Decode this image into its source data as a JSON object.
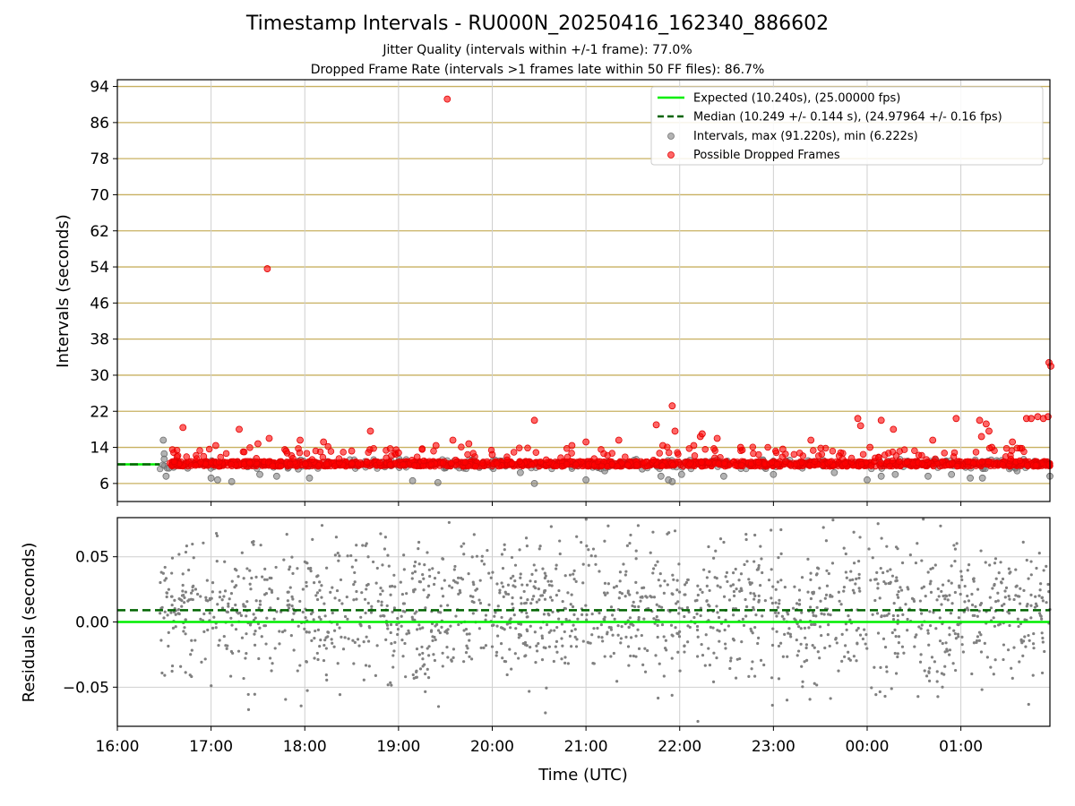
{
  "title": "Timestamp Intervals - RU000N_20250416_162340_886602",
  "subtitle_1": "Jitter Quality (intervals within +/-1 frame): 77.0%",
  "subtitle_2": "Dropped Frame Rate (intervals >1 frames late within 50 FF files): 86.7%",
  "colors": {
    "expected": "#00ee00",
    "median": "#006400",
    "interval_points": "#808080",
    "dropped_points": "#ff0000",
    "hgrid": "#c8b060",
    "vgrid": "#cfcfcf"
  },
  "chart_data": [
    {
      "type": "scatter",
      "xlabel": "",
      "ylabel": "Intervals (seconds)",
      "x_unit": "hours UTC (24+ = after midnight)",
      "xlim": [
        16.0,
        25.95
      ],
      "ylim": [
        2.0,
        95.5
      ],
      "yticks": [
        6,
        14,
        22,
        30,
        38,
        46,
        54,
        62,
        70,
        78,
        86,
        94
      ],
      "grid": true,
      "legend_placement": "top-right",
      "legend": [
        "Expected (10.240s), (25.00000 fps)",
        "Median (10.249 +/- 0.144 s), (24.97964 +/- 0.16 fps)",
        "Intervals, max (91.220s), min (6.222s)",
        "Possible Dropped Frames"
      ],
      "expected_line": {
        "y": 10.24
      },
      "median_line": {
        "y": 10.249
      },
      "data_start_x": 16.45,
      "dense_band": {
        "series": "Possible Dropped Frames",
        "x_range": [
          16.45,
          25.95
        ],
        "y_range": [
          9.8,
          10.9
        ]
      },
      "series": [
        {
          "name": "Intervals, max (91.220s), min (6.222s)",
          "points": [
            [
              16.49,
              15.6
            ],
            [
              16.5,
              12.6
            ],
            [
              16.5,
              11.4
            ],
            [
              16.52,
              7.6
            ],
            [
              16.55,
              9.4
            ],
            [
              16.6,
              9.6
            ],
            [
              16.75,
              9.4
            ],
            [
              17.0,
              7.2
            ],
            [
              17.07,
              6.8
            ],
            [
              17.22,
              6.4
            ],
            [
              17.52,
              8.0
            ],
            [
              17.7,
              7.6
            ],
            [
              17.93,
              9.2
            ],
            [
              18.05,
              7.2
            ],
            [
              19.15,
              6.6
            ],
            [
              19.42,
              6.2
            ],
            [
              20.3,
              8.4
            ],
            [
              20.45,
              6.0
            ],
            [
              21.0,
              6.8
            ],
            [
              21.2,
              8.8
            ],
            [
              21.6,
              9.2
            ],
            [
              21.8,
              7.6
            ],
            [
              21.88,
              6.8
            ],
            [
              21.92,
              6.4
            ],
            [
              22.02,
              8.0
            ],
            [
              22.47,
              7.6
            ],
            [
              23.0,
              8.0
            ],
            [
              23.65,
              8.4
            ],
            [
              24.0,
              6.8
            ],
            [
              24.15,
              7.6
            ],
            [
              24.3,
              8.0
            ],
            [
              24.65,
              7.6
            ],
            [
              24.9,
              8.0
            ],
            [
              25.1,
              7.2
            ],
            [
              25.23,
              7.2
            ],
            [
              25.6,
              8.8
            ],
            [
              25.95,
              7.6
            ]
          ]
        },
        {
          "name": "Possible Dropped Frames",
          "points": [
            [
              16.7,
              18.4
            ],
            [
              16.92,
              12.0
            ],
            [
              17.05,
              14.4
            ],
            [
              17.3,
              18.0
            ],
            [
              17.5,
              14.8
            ],
            [
              17.6,
              53.6
            ],
            [
              17.62,
              16.0
            ],
            [
              17.8,
              13.2
            ],
            [
              17.95,
              15.6
            ],
            [
              18.2,
              15.2
            ],
            [
              18.5,
              13.2
            ],
            [
              18.7,
              17.6
            ],
            [
              19.0,
              12.8
            ],
            [
              19.4,
              14.4
            ],
            [
              19.52,
              91.2
            ],
            [
              19.58,
              15.6
            ],
            [
              19.75,
              14.8
            ],
            [
              20.0,
              12.4
            ],
            [
              20.45,
              20.0
            ],
            [
              20.85,
              14.4
            ],
            [
              21.0,
              15.2
            ],
            [
              21.35,
              15.6
            ],
            [
              21.75,
              19.0
            ],
            [
              21.82,
              14.4
            ],
            [
              21.92,
              23.2
            ],
            [
              21.95,
              17.6
            ],
            [
              22.15,
              14.4
            ],
            [
              22.22,
              16.4
            ],
            [
              22.24,
              17.0
            ],
            [
              22.4,
              16.0
            ],
            [
              22.65,
              14.0
            ],
            [
              23.1,
              13.6
            ],
            [
              23.4,
              15.6
            ],
            [
              23.9,
              20.4
            ],
            [
              23.93,
              18.8
            ],
            [
              24.03,
              14.0
            ],
            [
              24.15,
              20.0
            ],
            [
              24.28,
              18.0
            ],
            [
              24.7,
              15.6
            ],
            [
              24.95,
              20.4
            ],
            [
              25.2,
              20.0
            ],
            [
              25.22,
              16.4
            ],
            [
              25.27,
              19.2
            ],
            [
              25.3,
              17.6
            ],
            [
              25.33,
              14.0
            ],
            [
              25.55,
              15.2
            ],
            [
              25.7,
              20.4
            ],
            [
              25.75,
              20.4
            ],
            [
              25.82,
              20.8
            ],
            [
              25.88,
              20.4
            ],
            [
              25.93,
              20.8
            ],
            [
              25.94,
              32.8
            ],
            [
              25.96,
              32.0
            ]
          ]
        }
      ]
    },
    {
      "type": "scatter",
      "xlabel": "Time (UTC)",
      "ylabel": "Residuals (seconds)",
      "xlim": [
        16.0,
        25.95
      ],
      "ylim": [
        -0.08,
        0.08
      ],
      "yticks": [
        -0.05,
        0.0,
        0.05
      ],
      "ytick_labels": [
        "−0.05",
        "0.00",
        "0.05"
      ],
      "xticks": [
        16,
        17,
        18,
        19,
        20,
        21,
        22,
        23,
        24,
        25
      ],
      "xtick_labels": [
        "16:00",
        "17:00",
        "18:00",
        "19:00",
        "20:00",
        "21:00",
        "22:00",
        "23:00",
        "00:00",
        "01:00"
      ],
      "grid": true,
      "expected_line": {
        "y": 0.0
      },
      "median_line": {
        "y": 0.009
      },
      "series": [
        {
          "name": "",
          "count": 1700,
          "x_range": [
            16.45,
            25.95
          ],
          "mean": 0.008,
          "std": 0.027
        }
      ]
    }
  ]
}
